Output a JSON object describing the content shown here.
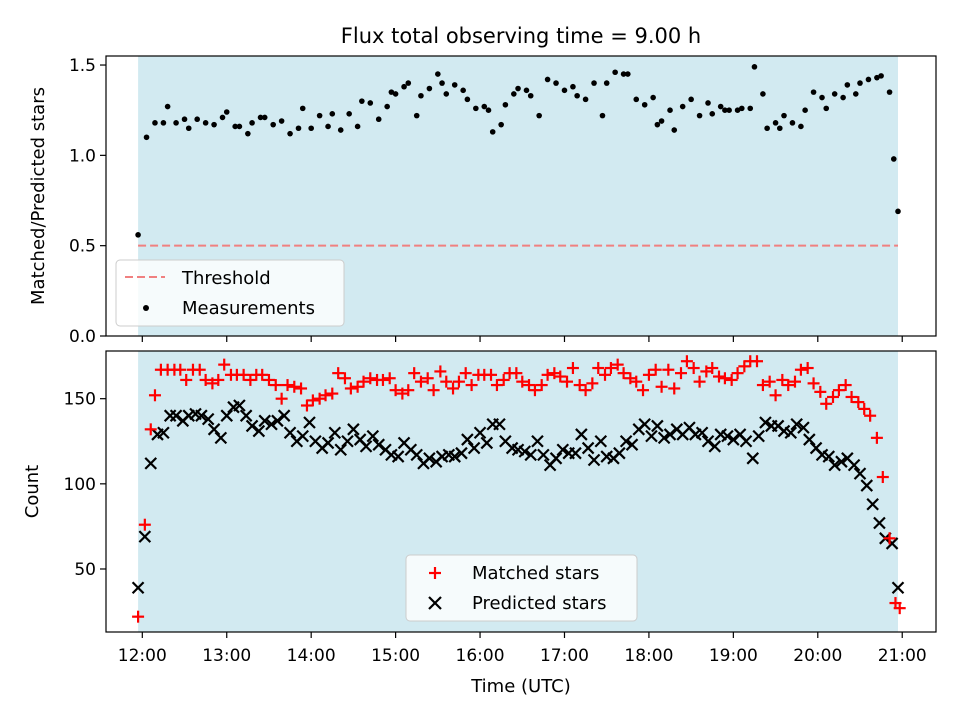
{
  "chart_data": [
    {
      "type": "scatter",
      "title": "Flux total observing time = 9.00 h",
      "xlabel": "",
      "ylabel": "Matched/Predicted stars",
      "ylim": [
        0,
        1.55
      ],
      "yticks": [
        "0.0",
        "0.5",
        "1.0",
        "1.5"
      ],
      "ytick_values": [
        0,
        0.5,
        1.0,
        1.5
      ],
      "xlim_hours": [
        11.57,
        21.4
      ],
      "shaded_span_hours": [
        11.95,
        20.95
      ],
      "shade_color": "#add8e6",
      "threshold": {
        "name": "Threshold",
        "value": 0.5,
        "color": "#f08080",
        "style": "dashed"
      },
      "series": [
        {
          "name": "Measurements",
          "marker": "dot",
          "color": "#000000",
          "x": [
            11.95,
            12.05,
            12.15,
            12.25,
            12.3,
            12.4,
            12.5,
            12.55,
            12.65,
            12.75,
            12.85,
            12.95,
            13.0,
            13.1,
            13.15,
            13.25,
            13.3,
            13.4,
            13.45,
            13.55,
            13.65,
            13.75,
            13.85,
            13.9,
            14.0,
            14.1,
            14.2,
            14.25,
            14.35,
            14.45,
            14.55,
            14.6,
            14.7,
            14.8,
            14.9,
            14.95,
            15.0,
            15.1,
            15.15,
            15.25,
            15.3,
            15.4,
            15.5,
            15.55,
            15.6,
            15.7,
            15.8,
            15.85,
            15.95,
            16.05,
            16.1,
            16.15,
            16.25,
            16.3,
            16.4,
            16.45,
            16.55,
            16.6,
            16.7,
            16.8,
            16.9,
            17.0,
            17.1,
            17.15,
            17.25,
            17.35,
            17.45,
            17.5,
            17.6,
            17.7,
            17.75,
            17.85,
            17.95,
            18.05,
            18.1,
            18.15,
            18.25,
            18.3,
            18.4,
            18.5,
            18.6,
            18.7,
            18.75,
            18.85,
            18.9,
            18.95,
            19.05,
            19.1,
            19.2,
            19.25,
            19.35,
            19.4,
            19.5,
            19.55,
            19.6,
            19.7,
            19.8,
            19.85,
            19.95,
            20.05,
            20.1,
            20.2,
            20.3,
            20.35,
            20.45,
            20.5,
            20.6,
            20.7,
            20.75,
            20.85,
            20.9,
            20.95
          ],
          "y": [
            0.56,
            1.1,
            1.18,
            1.18,
            1.27,
            1.18,
            1.2,
            1.15,
            1.2,
            1.18,
            1.17,
            1.21,
            1.24,
            1.16,
            1.16,
            1.12,
            1.18,
            1.21,
            1.21,
            1.17,
            1.19,
            1.12,
            1.15,
            1.26,
            1.15,
            1.22,
            1.16,
            1.23,
            1.14,
            1.23,
            1.16,
            1.3,
            1.29,
            1.2,
            1.27,
            1.35,
            1.34,
            1.38,
            1.4,
            1.22,
            1.33,
            1.37,
            1.45,
            1.4,
            1.34,
            1.39,
            1.36,
            1.31,
            1.26,
            1.27,
            1.25,
            1.13,
            1.17,
            1.28,
            1.34,
            1.37,
            1.36,
            1.33,
            1.22,
            1.42,
            1.4,
            1.36,
            1.38,
            1.33,
            1.31,
            1.4,
            1.22,
            1.4,
            1.46,
            1.45,
            1.45,
            1.31,
            1.28,
            1.32,
            1.17,
            1.19,
            1.25,
            1.14,
            1.27,
            1.31,
            1.22,
            1.29,
            1.23,
            1.27,
            1.25,
            1.25,
            1.25,
            1.26,
            1.26,
            1.49,
            1.34,
            1.15,
            1.18,
            1.15,
            1.22,
            1.18,
            1.16,
            1.25,
            1.35,
            1.32,
            1.26,
            1.34,
            1.32,
            1.39,
            1.34,
            1.4,
            1.42,
            1.43,
            1.44,
            1.35,
            0.98,
            0.69
          ]
        }
      ]
    },
    {
      "type": "scatter",
      "title": "",
      "xlabel": "Time (UTC)",
      "ylabel": "Count",
      "ylim": [
        13,
        178
      ],
      "yticks": [
        "50",
        "100",
        "150"
      ],
      "ytick_values": [
        50,
        100,
        150
      ],
      "xticks": [
        "12:00",
        "13:00",
        "14:00",
        "15:00",
        "16:00",
        "17:00",
        "18:00",
        "19:00",
        "20:00",
        "21:00"
      ],
      "xtick_values": [
        12,
        13,
        14,
        15,
        16,
        17,
        18,
        19,
        20,
        21
      ],
      "xlim_hours": [
        11.57,
        21.4
      ],
      "shaded_span_hours": [
        11.95,
        20.95
      ],
      "shade_color": "#add8e6",
      "series": [
        {
          "name": "Matched stars",
          "marker": "plus",
          "color": "#ff0000",
          "x": [
            11.95,
            12.03,
            12.1,
            12.15,
            12.22,
            12.3,
            12.38,
            12.45,
            12.52,
            12.6,
            12.68,
            12.75,
            12.83,
            12.9,
            12.97,
            13.05,
            13.12,
            13.2,
            13.28,
            13.35,
            13.42,
            13.5,
            13.58,
            13.65,
            13.72,
            13.8,
            13.88,
            13.95,
            14.02,
            14.1,
            14.17,
            14.25,
            14.32,
            14.4,
            14.47,
            14.55,
            14.62,
            14.7,
            14.78,
            14.85,
            14.93,
            15.0,
            15.08,
            15.15,
            15.22,
            15.3,
            15.38,
            15.45,
            15.53,
            15.6,
            15.68,
            15.75,
            15.83,
            15.9,
            15.98,
            16.05,
            16.13,
            16.2,
            16.28,
            16.35,
            16.43,
            16.5,
            16.58,
            16.65,
            16.73,
            16.8,
            16.88,
            16.95,
            17.03,
            17.1,
            17.18,
            17.25,
            17.33,
            17.4,
            17.48,
            17.55,
            17.63,
            17.7,
            17.78,
            17.85,
            17.93,
            18.0,
            18.08,
            18.15,
            18.23,
            18.3,
            18.38,
            18.45,
            18.53,
            18.6,
            18.68,
            18.75,
            18.83,
            18.9,
            18.98,
            19.05,
            19.13,
            19.2,
            19.28,
            19.35,
            19.43,
            19.5,
            19.58,
            19.65,
            19.73,
            19.8,
            19.88,
            19.95,
            20.03,
            20.1,
            20.18,
            20.25,
            20.33,
            20.4,
            20.48,
            20.55,
            20.62,
            20.7,
            20.77,
            20.85,
            20.92,
            20.97
          ],
          "y": [
            22,
            76,
            132,
            152,
            167,
            167,
            167,
            167,
            161,
            167,
            167,
            161,
            159,
            161,
            170,
            164,
            164,
            164,
            161,
            164,
            164,
            161,
            158,
            150,
            158,
            157,
            156,
            146,
            149,
            150,
            152,
            153,
            165,
            162,
            156,
            157,
            160,
            162,
            161,
            161,
            162,
            155,
            153,
            155,
            165,
            160,
            162,
            155,
            166,
            160,
            156,
            160,
            165,
            158,
            164,
            164,
            164,
            158,
            161,
            165,
            165,
            160,
            158,
            155,
            158,
            164,
            165,
            163,
            160,
            168,
            158,
            155,
            159,
            168,
            164,
            168,
            170,
            165,
            162,
            160,
            155,
            164,
            167,
            157,
            167,
            156,
            165,
            172,
            168,
            160,
            166,
            168,
            163,
            162,
            161,
            165,
            169,
            172,
            172,
            158,
            160,
            152,
            161,
            158,
            160,
            167,
            168,
            159,
            154,
            147,
            151,
            155,
            158,
            151,
            148,
            144,
            140,
            127,
            104,
            68,
            30,
            27
          ]
        },
        {
          "name": "Predicted stars",
          "marker": "x",
          "color": "#000000",
          "x": [
            11.95,
            12.03,
            12.1,
            12.18,
            12.25,
            12.33,
            12.4,
            12.48,
            12.55,
            12.63,
            12.7,
            12.78,
            12.85,
            12.93,
            13.0,
            13.08,
            13.15,
            13.23,
            13.3,
            13.38,
            13.45,
            13.53,
            13.6,
            13.68,
            13.75,
            13.83,
            13.9,
            13.98,
            14.05,
            14.13,
            14.2,
            14.28,
            14.35,
            14.43,
            14.5,
            14.58,
            14.65,
            14.73,
            14.8,
            14.88,
            14.95,
            15.03,
            15.1,
            15.18,
            15.25,
            15.33,
            15.4,
            15.48,
            15.55,
            15.63,
            15.7,
            15.78,
            15.85,
            15.93,
            16.0,
            16.08,
            16.15,
            16.23,
            16.3,
            16.38,
            16.45,
            16.53,
            16.6,
            16.68,
            16.75,
            16.83,
            16.9,
            16.98,
            17.05,
            17.13,
            17.2,
            17.28,
            17.35,
            17.43,
            17.5,
            17.58,
            17.65,
            17.73,
            17.8,
            17.88,
            17.95,
            18.03,
            18.1,
            18.18,
            18.25,
            18.33,
            18.4,
            18.48,
            18.55,
            18.63,
            18.7,
            18.78,
            18.85,
            18.93,
            19.0,
            19.08,
            19.15,
            19.23,
            19.3,
            19.38,
            19.45,
            19.53,
            19.6,
            19.68,
            19.75,
            19.83,
            19.9,
            19.98,
            20.05,
            20.13,
            20.2,
            20.28,
            20.35,
            20.43,
            20.5,
            20.58,
            20.65,
            20.73,
            20.8,
            20.88,
            20.95
          ],
          "y": [
            39,
            69,
            112,
            129,
            130,
            140,
            140,
            137,
            140,
            141,
            140,
            138,
            132,
            127,
            140,
            145,
            146,
            140,
            134,
            131,
            137,
            135,
            137,
            140,
            130,
            125,
            128,
            136,
            125,
            121,
            124,
            130,
            120,
            125,
            132,
            126,
            122,
            128,
            123,
            120,
            117,
            116,
            124,
            120,
            117,
            112,
            115,
            113,
            116,
            117,
            116,
            118,
            126,
            121,
            130,
            124,
            135,
            135,
            125,
            121,
            120,
            119,
            117,
            125,
            117,
            111,
            115,
            120,
            118,
            118,
            129,
            121,
            114,
            125,
            116,
            115,
            118,
            125,
            123,
            132,
            135,
            128,
            134,
            127,
            129,
            132,
            129,
            133,
            129,
            130,
            125,
            122,
            129,
            128,
            126,
            129,
            125,
            115,
            128,
            136,
            134,
            134,
            131,
            130,
            135,
            133,
            126,
            121,
            117,
            116,
            111,
            113,
            115,
            111,
            106,
            99,
            88,
            77,
            68,
            65,
            39
          ]
        }
      ]
    }
  ]
}
